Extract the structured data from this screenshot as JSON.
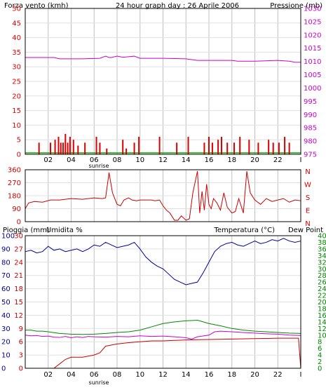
{
  "header": {
    "left_title": "Forza vento (kmh)",
    "center_title": "24 hour graph day : 26 Aprile 2006",
    "right_title": "Pressione (mb)"
  },
  "bottom_header": {
    "left_title": "Pioggia (mm)",
    "mid_title": "Umidita %",
    "right_title_temp": "Temperatura (°C)",
    "right_title_dew": "Dew Point"
  },
  "sunrise_label": "sunrise",
  "colors": {
    "frame": "#000000",
    "grid": "#c0c0c0",
    "wind": "#dd0000",
    "pressure": "#cc00cc",
    "direction": "#cc0000",
    "humidity": "#000099",
    "temperature": "#008800",
    "dewpoint": "#cc00cc",
    "rain": "#cc0000",
    "baseline": "#00aa00",
    "gust": "#0000cc"
  },
  "x_ticks": [
    "02",
    "04",
    "06",
    "08",
    "10",
    "12",
    "14",
    "16",
    "18",
    "20",
    "22"
  ],
  "x_end_tick": "I",
  "chart_data": [
    {
      "type": "line",
      "title": "24 hour graph day : 26 Aprile 2006",
      "left_axis": {
        "label": "Forza vento (kmh)",
        "range": [
          0,
          50
        ],
        "ticks": [
          0,
          5,
          10,
          15,
          20,
          25,
          30,
          35,
          40,
          45,
          50
        ]
      },
      "right_axis": {
        "label": "Pressione (mb)",
        "range": [
          975,
          1030
        ],
        "ticks": [
          975,
          980,
          985,
          990,
          995,
          1000,
          1005,
          1010,
          1015,
          1020,
          1025,
          1030
        ]
      },
      "series": [
        {
          "name": "Pressione (mb)",
          "axis": "right",
          "x": [
            0,
            2.5,
            3,
            5,
            6.5,
            7,
            7.3,
            7.5,
            8,
            8.5,
            9,
            9.5,
            10,
            12,
            14,
            15,
            18,
            18.5,
            20,
            22,
            23,
            23.5,
            24
          ],
          "y": [
            1011.5,
            1011.5,
            1011,
            1011,
            1011.2,
            1012,
            1011.5,
            1011.5,
            1012,
            1011.6,
            1011.8,
            1012,
            1011.2,
            1011.2,
            1011,
            1010.4,
            1010.4,
            1010.1,
            1010.1,
            1010.4,
            1010.1,
            1009.7,
            1009.7
          ]
        },
        {
          "name": "Forza vento (kmh)",
          "axis": "left",
          "style": "bars",
          "x": [
            1.2,
            2.2,
            2.6,
            2.9,
            3.1,
            3.3,
            3.5,
            3.7,
            3.9,
            4.2,
            4.6,
            5.2,
            6.2,
            6.5,
            7.1,
            8.5,
            8.8,
            9.5,
            9.9,
            11.7,
            13.2,
            14.2,
            15.6,
            16.0,
            16.3,
            16.8,
            17.1,
            17.6,
            18.2,
            18.7,
            19.5,
            20.3,
            21.2,
            21.6,
            22.1,
            22.6,
            23.0
          ],
          "y": [
            4,
            4,
            5,
            6,
            4,
            4,
            7,
            4,
            6,
            5,
            3,
            4,
            6,
            4,
            2,
            5,
            2,
            4,
            6,
            6,
            4,
            6,
            4,
            6,
            4,
            5,
            6,
            4,
            4,
            6,
            5,
            4,
            5,
            4,
            4,
            6,
            4
          ]
        }
      ]
    },
    {
      "type": "line",
      "title": "",
      "left_axis": {
        "range": [
          0,
          360
        ],
        "ticks": [
          0,
          90,
          180,
          270,
          360
        ]
      },
      "right_axis": {
        "labels": [
          "N",
          "W",
          "S",
          "E",
          "N"
        ]
      },
      "series": [
        {
          "name": "",
          "axis": "left",
          "x": [
            0,
            0.3,
            0.8,
            1.5,
            2.2,
            3,
            4,
            5,
            6,
            6.7,
            7,
            7.3,
            7.6,
            8,
            8.3,
            8.6,
            9,
            9.3,
            9.7,
            10,
            11,
            11.3,
            11.7,
            12,
            12.3,
            12.6,
            13,
            13.3,
            13.6,
            14,
            14.3,
            14.6,
            15,
            15.2,
            15.4,
            15.6,
            15.8,
            16,
            16.2,
            16.4,
            16.7,
            17,
            17.3,
            17.6,
            18,
            18.3,
            18.6,
            19,
            19.3,
            19.6,
            20,
            20.5,
            21,
            21.5,
            22,
            22.5,
            23,
            23.5,
            24
          ],
          "y": [
            90,
            130,
            140,
            135,
            150,
            150,
            160,
            155,
            165,
            160,
            165,
            340,
            200,
            120,
            110,
            150,
            165,
            150,
            145,
            150,
            150,
            145,
            150,
            110,
            80,
            60,
            10,
            10,
            40,
            10,
            20,
            200,
            350,
            60,
            210,
            80,
            260,
            120,
            90,
            160,
            130,
            80,
            200,
            100,
            60,
            70,
            160,
            60,
            350,
            200,
            150,
            120,
            160,
            140,
            150,
            160,
            135,
            150,
            145
          ]
        }
      ]
    },
    {
      "type": "line",
      "title": "",
      "left_axis_inner": {
        "label": "Pioggia (mm)",
        "range": [
          0,
          30
        ],
        "ticks": [
          0,
          3,
          6,
          9,
          12,
          15,
          18,
          21,
          24,
          27,
          30
        ]
      },
      "left_axis_outer": {
        "label": "Umidita %",
        "range": [
          0,
          100
        ],
        "ticks": [
          0,
          10,
          20,
          30,
          40,
          50,
          60,
          70,
          80,
          90,
          100
        ]
      },
      "right_axis": {
        "label": "Temperatura (°C)",
        "range": [
          0,
          40
        ],
        "ticks": [
          0,
          2,
          4,
          6,
          8,
          10,
          12,
          14,
          16,
          18,
          20,
          22,
          24,
          26,
          28,
          30,
          32,
          34,
          36,
          38,
          40
        ]
      },
      "series": [
        {
          "name": "Umidita %",
          "axis": "left_outer",
          "x": [
            0,
            0.5,
            1,
            1.5,
            2,
            2.5,
            3,
            3.5,
            4,
            4.5,
            5,
            5.5,
            6,
            6.5,
            7,
            7.5,
            8,
            8.5,
            9,
            9.5,
            10,
            10.5,
            11,
            11.5,
            12,
            12.5,
            13,
            13.5,
            14,
            14.5,
            15,
            15.5,
            16,
            16.5,
            17,
            17.5,
            18,
            18.5,
            19,
            19.5,
            20,
            20.5,
            21,
            21.5,
            22,
            22.5,
            23,
            23.5,
            24
          ],
          "y": [
            88,
            89,
            87,
            88,
            92,
            89,
            90,
            88,
            89,
            90,
            88,
            90,
            93,
            92,
            95,
            93,
            91,
            92,
            93,
            95,
            90,
            84,
            80,
            77,
            75,
            71,
            67,
            65,
            63,
            64,
            65,
            72,
            80,
            88,
            92,
            94,
            95,
            93,
            92,
            94,
            96,
            94,
            95,
            97,
            96,
            98,
            96,
            95,
            96
          ]
        },
        {
          "name": "Pioggia (mm)",
          "axis": "left_inner",
          "x": [
            0,
            1,
            2,
            2.5,
            3,
            3.5,
            4,
            5,
            6,
            6.5,
            7,
            8,
            9,
            10,
            11,
            12,
            13,
            14,
            16,
            18,
            20,
            22,
            23.8,
            24
          ],
          "y": [
            0,
            0,
            0,
            0,
            1,
            2,
            2.5,
            2.5,
            3,
            3.5,
            5,
            5.5,
            5.8,
            6,
            6.2,
            6.2,
            6.3,
            6.4,
            6.5,
            6.6,
            6.7,
            6.8,
            6.8,
            0
          ]
        },
        {
          "name": "Temperatura (°C)",
          "axis": "right",
          "x": [
            0,
            0.5,
            1,
            1.5,
            2,
            3,
            4,
            5,
            6,
            7,
            8,
            9,
            10,
            11,
            12,
            13,
            14,
            15,
            16,
            17,
            18,
            19,
            20,
            21,
            22,
            23,
            24
          ],
          "y": [
            11.5,
            11.5,
            11.2,
            11.2,
            11,
            10.5,
            10.3,
            10.2,
            10.3,
            10.5,
            10.8,
            11,
            11.5,
            12.5,
            13.5,
            14,
            14.3,
            14.5,
            13.5,
            12.8,
            12,
            11.5,
            11.2,
            11,
            10.8,
            10.6,
            10.5
          ]
        },
        {
          "name": "Dew Point",
          "axis": "right",
          "x": [
            0,
            0.5,
            1,
            1.5,
            2,
            2.5,
            3,
            3.5,
            4,
            4.5,
            5,
            5.5,
            6,
            7,
            8,
            9,
            10,
            11,
            12,
            13,
            14,
            14.5,
            15,
            16,
            16.5,
            17,
            18,
            19,
            20,
            21,
            22,
            23,
            24
          ],
          "y": [
            10,
            9.8,
            9.9,
            9.6,
            9.7,
            9.4,
            9.3,
            9.6,
            9.2,
            9.5,
            9.3,
            9.6,
            9.5,
            9.4,
            9.6,
            9.5,
            9.8,
            9.6,
            9.7,
            9.5,
            9.2,
            8.8,
            9.5,
            10,
            11,
            11.2,
            11,
            10.8,
            10.6,
            10.4,
            10.3,
            10,
            9.9
          ]
        }
      ]
    }
  ]
}
